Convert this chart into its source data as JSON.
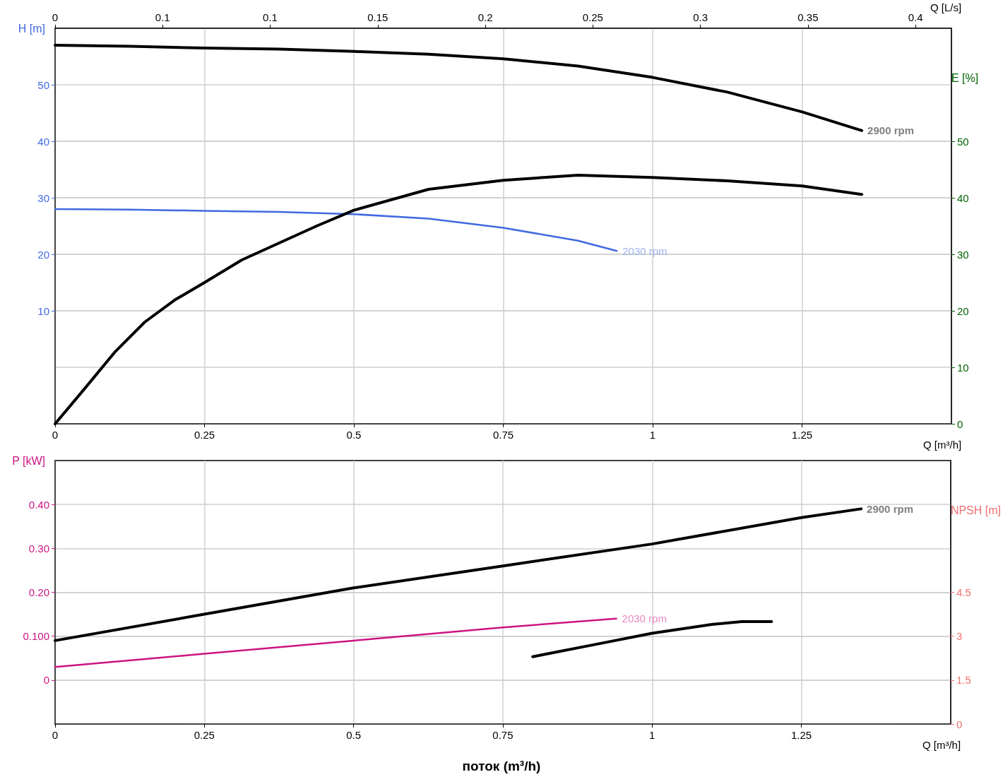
{
  "chart_data": [
    {
      "type": "line",
      "xlabel": "Q [m³/h]",
      "x2label": "Q [L/s]",
      "ylabel": "H [m]",
      "y2label": "E [%]",
      "xlim": [
        0,
        1.5
      ],
      "xticks": [
        0,
        0.25,
        0.5,
        0.75,
        1,
        1.25
      ],
      "x2lim": [
        0,
        0.4167
      ],
      "x2ticks": [
        0,
        {
          "value": 0.05,
          "label": "0.1"
        },
        0.1,
        0.15,
        0.2,
        0.25,
        0.3,
        0.35,
        0.4
      ],
      "ylim": [
        -10,
        60
      ],
      "yticks": [
        10,
        20,
        30,
        40,
        50
      ],
      "y2lim": [
        0,
        70
      ],
      "y2ticks": [
        0,
        10,
        20,
        30,
        40,
        50
      ],
      "grid": true,
      "legend": false,
      "marker": "none",
      "line_style": "solid",
      "series": [
        {
          "name": "2900 rpm",
          "color": "#000000",
          "x": [
            0,
            0.125,
            0.25,
            0.375,
            0.5,
            0.625,
            0.75,
            0.875,
            1.0,
            1.125,
            1.25,
            1.35
          ],
          "values": [
            57,
            56.8,
            56.5,
            56.3,
            55.9,
            55.4,
            54.6,
            53.3,
            51.3,
            48.7,
            45.2,
            41.9
          ]
        },
        {
          "name": "2030 rpm",
          "color": "#4169e1",
          "x": [
            0,
            0.125,
            0.25,
            0.375,
            0.5,
            0.625,
            0.75,
            0.875,
            0.94
          ],
          "values": [
            28,
            27.9,
            27.7,
            27.5,
            27.1,
            26.3,
            24.7,
            22.4,
            20.6
          ]
        },
        {
          "color": "#000000",
          "axis": "y2",
          "x": [
            0,
            0.05,
            0.1,
            0.15,
            0.2,
            0.25,
            0.3125,
            0.375,
            0.4375,
            0.5,
            0.625,
            0.75,
            0.875,
            1.0,
            1.125,
            1.25,
            1.35
          ],
          "values": [
            0,
            6.3,
            12.7,
            18,
            21.9,
            25,
            29,
            32,
            35,
            37.8,
            41.5,
            43.1,
            44,
            43.6,
            43,
            42.1,
            40.6
          ]
        }
      ]
    },
    {
      "type": "line",
      "xlabel": "Q [m³/h]",
      "ylabel": "P [kW]",
      "y2label": "NPSH [m]",
      "annotations": [
        "поток (m³/h)"
      ],
      "xlim": [
        0,
        1.5
      ],
      "xticks": [
        0,
        0.25,
        0.5,
        0.75,
        1,
        1.25
      ],
      "ylim": [
        -0.1,
        0.5
      ],
      "yticks": [
        0,
        {
          "value": 0.1,
          "label": "0.100"
        },
        {
          "value": 0.2,
          "label": "0.20"
        },
        {
          "value": 0.3,
          "label": "0.30"
        },
        {
          "value": 0.4,
          "label": "0.40"
        }
      ],
      "y2lim": [
        0,
        9
      ],
      "y2ticks": [
        0,
        1.5,
        3,
        4.5
      ],
      "grid": true,
      "legend": false,
      "marker": "none",
      "line_style": "solid",
      "series": [
        {
          "name": "2900 rpm",
          "color": "#000000",
          "x": [
            0,
            0.25,
            0.5,
            0.75,
            1.0,
            1.25,
            1.35
          ],
          "values": [
            0.09,
            0.15,
            0.21,
            0.26,
            0.31,
            0.37,
            0.39
          ]
        },
        {
          "name": "2030 rpm",
          "color": "#cc1480",
          "x": [
            0,
            0.25,
            0.5,
            0.75,
            0.94
          ],
          "values": [
            0.03,
            0.06,
            0.09,
            0.12,
            0.14
          ]
        },
        {
          "color": "#000000",
          "axis": "y2",
          "x": [
            0.8,
            0.9,
            1.0,
            1.1,
            1.15,
            1.2
          ],
          "values": [
            2.3,
            2.7,
            3.1,
            3.4,
            3.5,
            3.5
          ]
        }
      ]
    }
  ]
}
